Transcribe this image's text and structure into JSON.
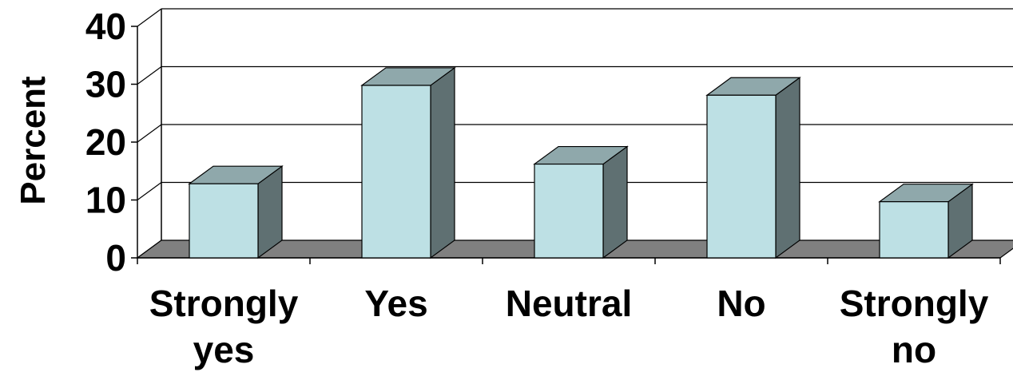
{
  "chart_data": {
    "type": "bar",
    "style": "3d",
    "categories": [
      "Strongly yes",
      "Yes",
      "Neutral",
      "No",
      "Strongly no"
    ],
    "category_lines": [
      [
        "Strongly",
        "yes"
      ],
      [
        "Yes"
      ],
      [
        "Neutral"
      ],
      [
        "No"
      ],
      [
        "Strongly",
        "no"
      ]
    ],
    "values": [
      12.8,
      29.8,
      16.2,
      28.1,
      9.7
    ],
    "ylabel": "Percent",
    "xlabel": "",
    "title": "",
    "ylim": [
      0,
      40
    ],
    "yticks": [
      "0",
      "10",
      "20",
      "30",
      "40"
    ],
    "grid": true,
    "legend": "none",
    "colors": {
      "bar_front": "#bde0e4",
      "bar_top": "#8fa8ab",
      "bar_side": "#5f7072",
      "floor": "#808080",
      "gridline": "#000000"
    }
  }
}
